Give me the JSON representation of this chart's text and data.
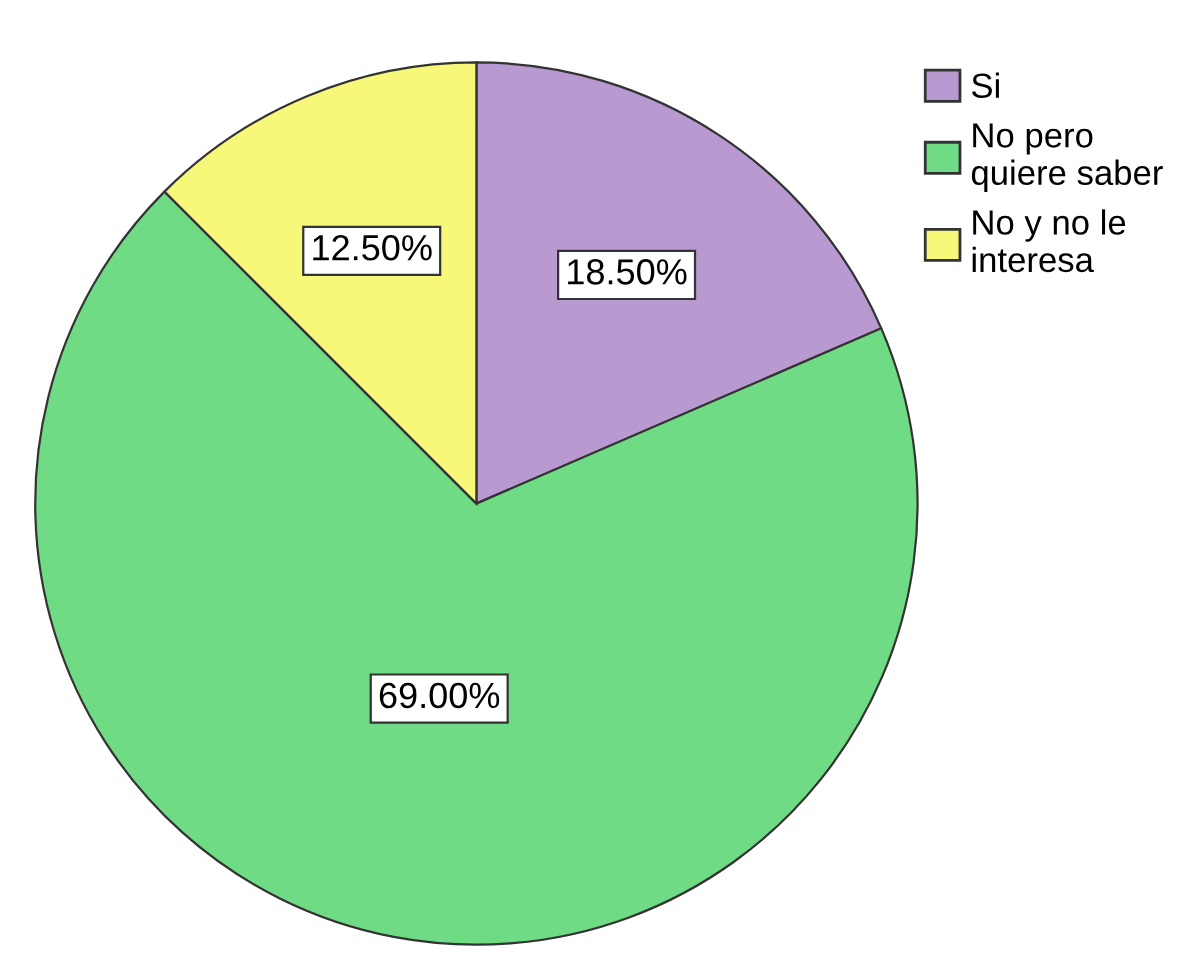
{
  "chart_data": {
    "type": "pie",
    "categories": [
      "Si",
      "No pero quiere saber",
      "No y no le interesa"
    ],
    "values": [
      18.5,
      69.0,
      12.5
    ],
    "colors": [
      "#b99ad0",
      "#6fdc85",
      "#f7f77a"
    ],
    "value_labels": [
      "18.50%",
      "69.00%",
      "12.50%"
    ],
    "legend": "top right"
  }
}
